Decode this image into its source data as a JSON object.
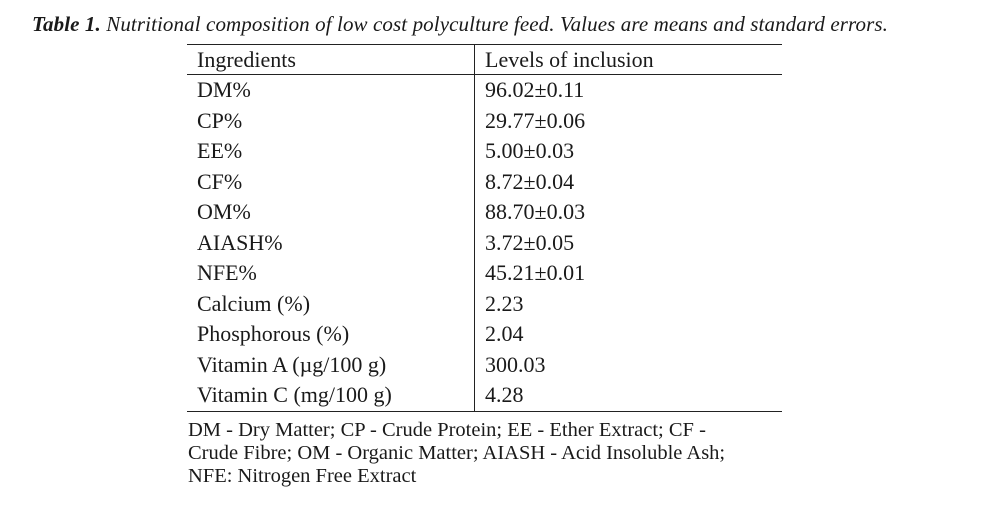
{
  "caption": {
    "label": "Table 1.",
    "text": "Nutritional composition of low cost polyculture feed. Values are means and standard errors."
  },
  "table": {
    "headers": [
      "Ingredients",
      "Levels of inclusion"
    ],
    "rows": [
      [
        "DM%",
        "96.02±0.11"
      ],
      [
        "CP%",
        "29.77±0.06"
      ],
      [
        "EE%",
        "5.00±0.03"
      ],
      [
        "CF%",
        "8.72±0.04"
      ],
      [
        "OM%",
        "88.70±0.03"
      ],
      [
        "AIASH%",
        "3.72±0.05"
      ],
      [
        "NFE%",
        "45.21±0.01"
      ],
      [
        "Calcium (%)",
        "2.23"
      ],
      [
        "Phosphorous (%)",
        "2.04"
      ],
      [
        "Vitamin A (µg/100 g)",
        "300.03"
      ],
      [
        "Vitamin C (mg/100 g)",
        "4.28"
      ]
    ]
  },
  "footnote": {
    "line1": "DM - Dry Matter; CP - Crude Protein; EE - Ether Extract; CF -",
    "line2": "Crude Fibre; OM - Organic Matter; AIASH - Acid Insoluble Ash;",
    "line3": "NFE: Nitrogen Free Extract"
  }
}
